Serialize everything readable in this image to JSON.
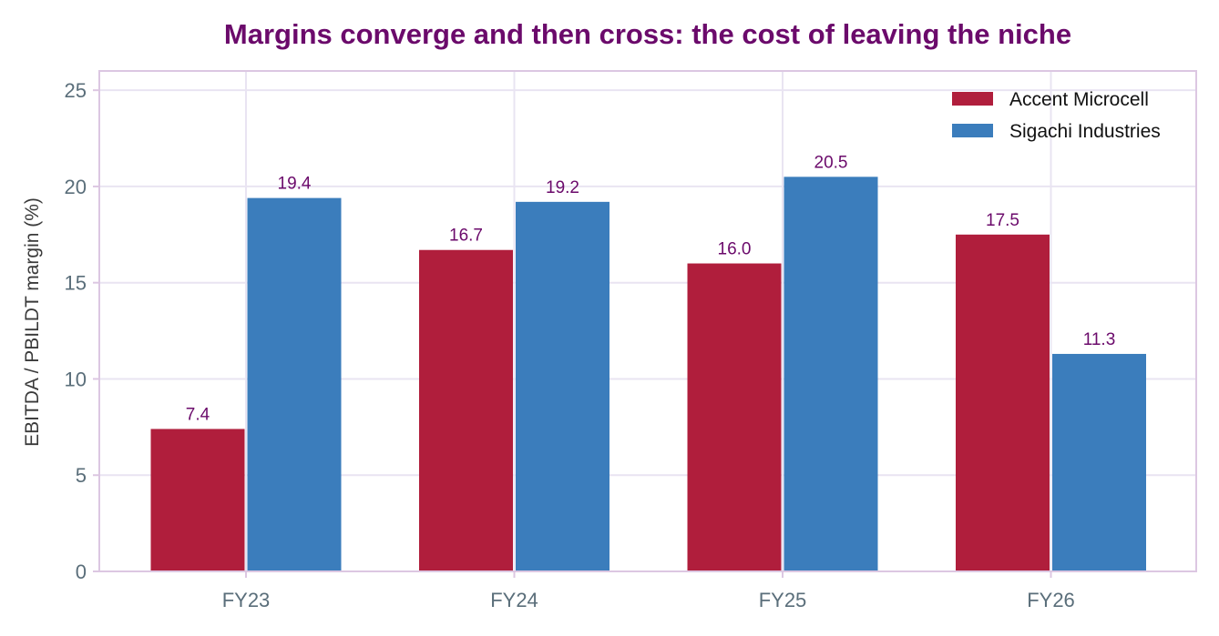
{
  "chart_data": {
    "type": "bar",
    "title": "Margins converge and then cross: the cost of leaving the niche",
    "xlabel": "",
    "ylabel": "EBITDA / PBILDT margin (%)",
    "categories": [
      "FY23",
      "FY24",
      "FY25",
      "FY26"
    ],
    "series": [
      {
        "name": "Accent Microcell",
        "values": [
          7.4,
          16.7,
          16.0,
          17.5
        ],
        "labels": [
          "7.4",
          "16.7",
          "16.0",
          "17.5"
        ],
        "color": "#b01e3c"
      },
      {
        "name": "Sigachi Industries",
        "values": [
          19.4,
          19.2,
          20.5,
          11.3
        ],
        "labels": [
          "19.4",
          "19.2",
          "20.5",
          "11.3"
        ],
        "color": "#3b7dbc"
      }
    ],
    "ylim": [
      0,
      26
    ],
    "yticks": [
      0,
      5,
      10,
      15,
      20,
      25
    ],
    "ytick_labels": [
      "0",
      "5",
      "10",
      "15",
      "20",
      "25"
    ],
    "grid": true,
    "legend_position": "top-right"
  },
  "colors": {
    "title": "#6b0a6b",
    "value_label": "#6b0a6b",
    "tick_label": "#5a6e7a",
    "axis_label": "#3a3a3a",
    "grid": "#e9e4f2",
    "frame": "#dcc7e2",
    "background": "#ffffff",
    "legend_text": "#111111"
  }
}
